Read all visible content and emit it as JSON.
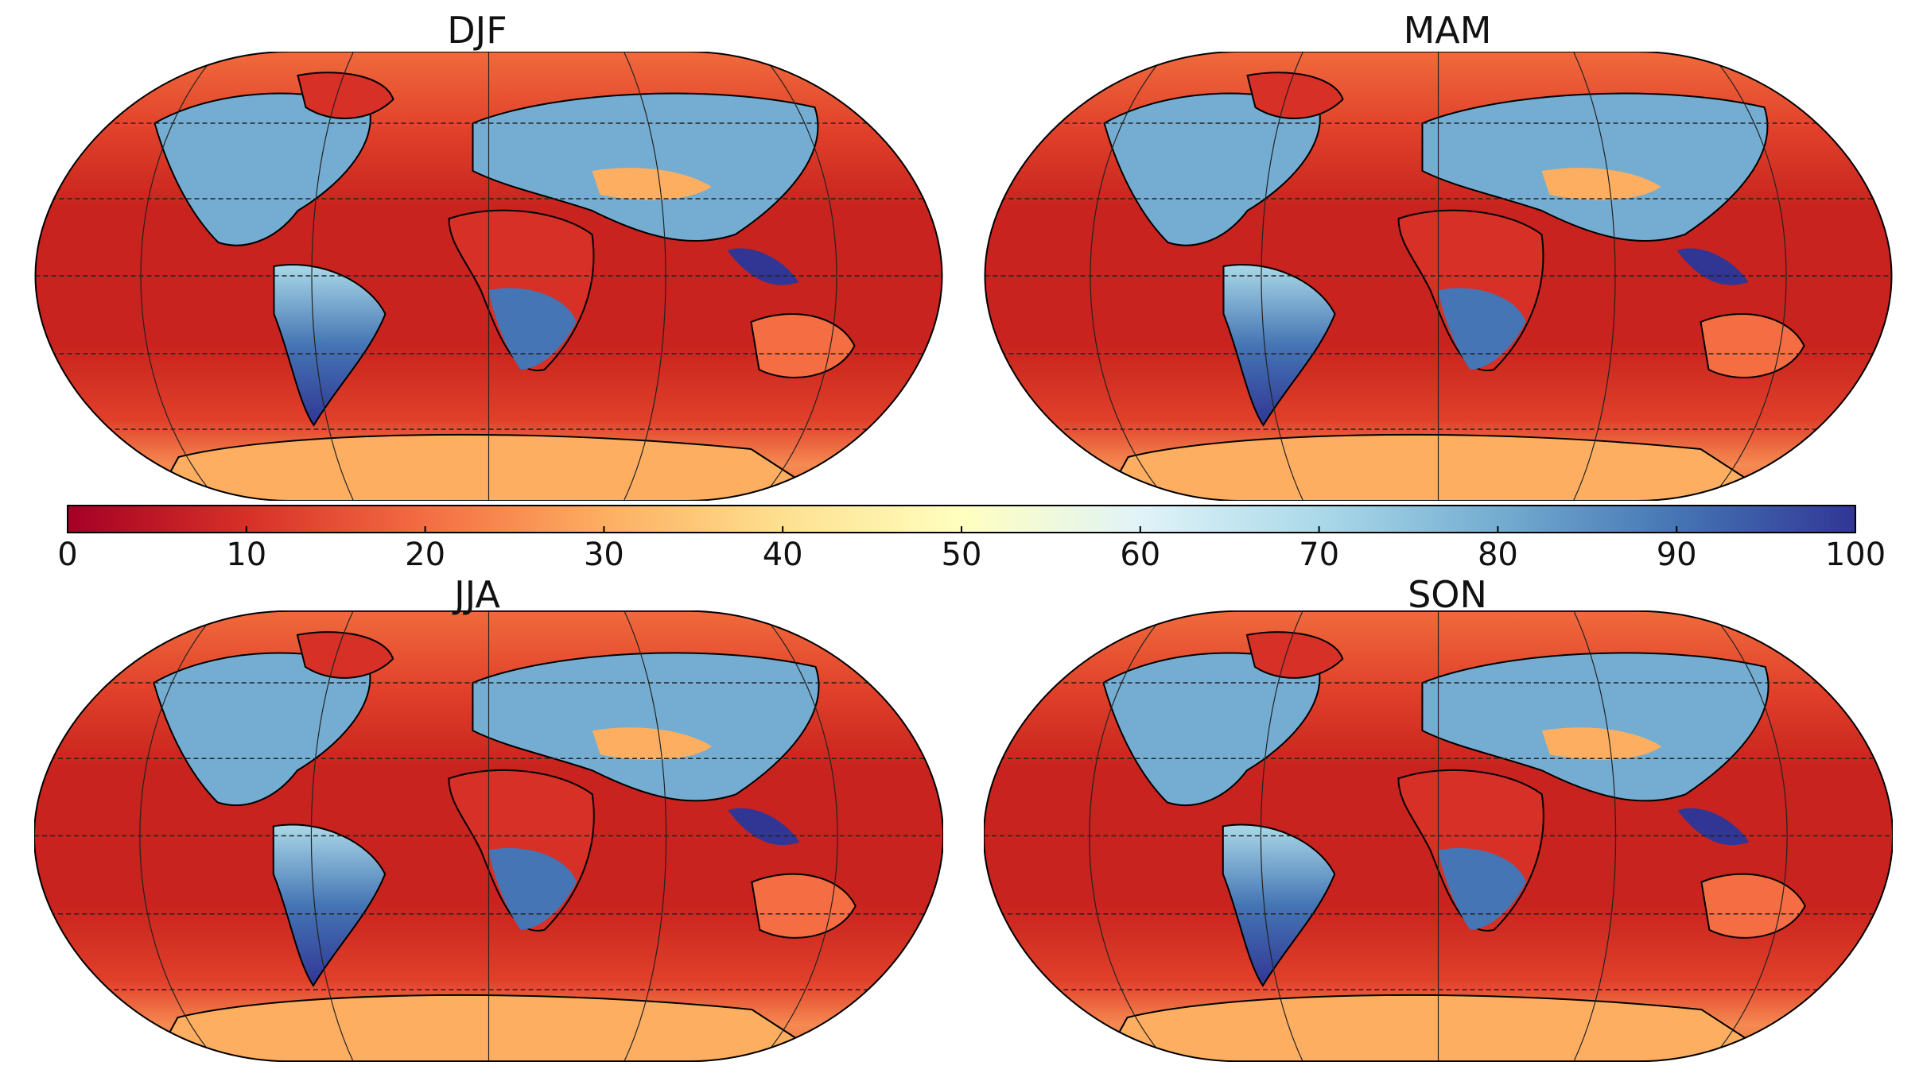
{
  "panels": [
    {
      "title": "DJF"
    },
    {
      "title": "MAM"
    },
    {
      "title": "JJA"
    },
    {
      "title": "SON"
    }
  ],
  "colorbar": {
    "range": [
      0,
      100
    ],
    "ticks": [
      0,
      10,
      20,
      30,
      40,
      50,
      60,
      70,
      80,
      90,
      100
    ],
    "colormap": [
      "#a50026",
      "#d73027",
      "#f46d43",
      "#fdae61",
      "#fee090",
      "#ffffbf",
      "#e0f3f8",
      "#abd9e9",
      "#74add1",
      "#4575b4",
      "#313695"
    ]
  }
}
